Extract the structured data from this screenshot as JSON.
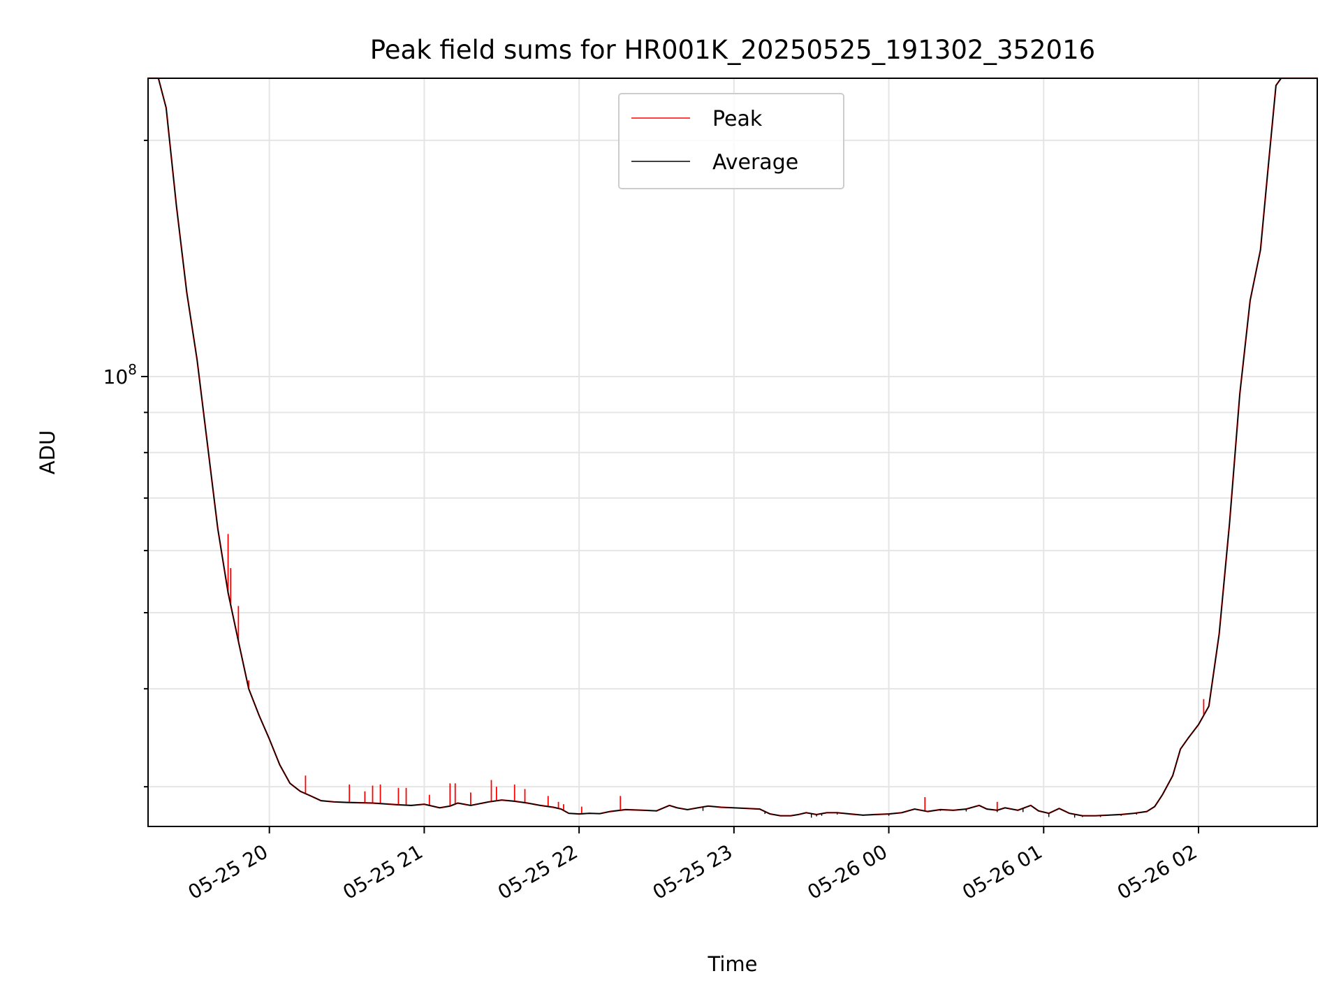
{
  "chart_data": {
    "type": "line",
    "title": "Peak field sums for HR001K_20250525_191302_352016",
    "xlabel": "Time",
    "ylabel": "ADU",
    "yscale": "log",
    "ylim": [
      26700000,
      240000000
    ],
    "xlim": [
      "2025-05-25 19:13",
      "2025-05-26 02:46"
    ],
    "grid": true,
    "legend_position": "top-center",
    "x_tick_labels": [
      "05-25 20",
      "05-25 21",
      "05-25 22",
      "05-25 23",
      "05-26 00",
      "05-26 01",
      "05-26 02"
    ],
    "x_ticks": [
      "2025-05-25 20:00",
      "2025-05-25 21:00",
      "2025-05-25 22:00",
      "2025-05-25 23:00",
      "2025-05-26 00:00",
      "2025-05-26 01:00",
      "2025-05-26 02:00"
    ],
    "y_tick_label": {
      "base": "10",
      "exponent": "8",
      "value": 100000000
    },
    "y_minor_ticks": [
      30000000,
      40000000,
      50000000,
      60000000,
      70000000,
      80000000,
      90000000,
      200000000
    ],
    "series": [
      {
        "name": "Average",
        "color": "#000000",
        "points": [
          [
            "2025-05-25 19:13",
            240000000
          ],
          [
            "2025-05-25 19:17",
            240000000
          ],
          [
            "2025-05-25 19:20",
            220000000
          ],
          [
            "2025-05-25 19:24",
            165000000
          ],
          [
            "2025-05-25 19:28",
            128000000
          ],
          [
            "2025-05-25 19:32",
            105000000
          ],
          [
            "2025-05-25 19:36",
            82000000
          ],
          [
            "2025-05-25 19:40",
            64000000
          ],
          [
            "2025-05-25 19:44",
            53000000
          ],
          [
            "2025-05-25 19:48",
            46000000
          ],
          [
            "2025-05-25 19:52",
            40000000
          ],
          [
            "2025-05-25 19:56",
            37000000
          ],
          [
            "2025-05-25 20:00",
            34500000
          ],
          [
            "2025-05-25 20:04",
            32000000
          ],
          [
            "2025-05-25 20:08",
            30300000
          ],
          [
            "2025-05-25 20:12",
            29600000
          ],
          [
            "2025-05-25 20:16",
            29200000
          ],
          [
            "2025-05-25 20:20",
            28800000
          ],
          [
            "2025-05-25 20:25",
            28700000
          ],
          [
            "2025-05-25 20:30",
            28650000
          ],
          [
            "2025-05-25 20:40",
            28600000
          ],
          [
            "2025-05-25 20:50",
            28450000
          ],
          [
            "2025-05-25 20:55",
            28400000
          ],
          [
            "2025-05-25 21:00",
            28500000
          ],
          [
            "2025-05-25 21:06",
            28200000
          ],
          [
            "2025-05-25 21:10",
            28350000
          ],
          [
            "2025-05-25 21:13",
            28600000
          ],
          [
            "2025-05-25 21:18",
            28400000
          ],
          [
            "2025-05-25 21:25",
            28700000
          ],
          [
            "2025-05-25 21:30",
            28850000
          ],
          [
            "2025-05-25 21:35",
            28750000
          ],
          [
            "2025-05-25 21:40",
            28600000
          ],
          [
            "2025-05-25 21:45",
            28400000
          ],
          [
            "2025-05-25 21:50",
            28250000
          ],
          [
            "2025-05-25 21:53",
            28100000
          ],
          [
            "2025-05-25 21:56",
            27750000
          ],
          [
            "2025-05-25 22:00",
            27700000
          ],
          [
            "2025-05-25 22:04",
            27750000
          ],
          [
            "2025-05-25 22:08",
            27720000
          ],
          [
            "2025-05-25 22:12",
            27900000
          ],
          [
            "2025-05-25 22:18",
            28050000
          ],
          [
            "2025-05-25 22:25",
            28000000
          ],
          [
            "2025-05-25 22:30",
            27950000
          ],
          [
            "2025-05-25 22:35",
            28400000
          ],
          [
            "2025-05-25 22:38",
            28200000
          ],
          [
            "2025-05-25 22:42",
            28050000
          ],
          [
            "2025-05-25 22:46",
            28200000
          ],
          [
            "2025-05-25 22:50",
            28350000
          ],
          [
            "2025-05-25 22:55",
            28250000
          ],
          [
            "2025-05-25 23:00",
            28200000
          ],
          [
            "2025-05-25 23:05",
            28150000
          ],
          [
            "2025-05-25 23:10",
            28100000
          ],
          [
            "2025-05-25 23:14",
            27700000
          ],
          [
            "2025-05-25 23:18",
            27550000
          ],
          [
            "2025-05-25 23:22",
            27550000
          ],
          [
            "2025-05-25 23:25",
            27650000
          ],
          [
            "2025-05-25 23:28",
            27800000
          ],
          [
            "2025-05-25 23:32",
            27650000
          ],
          [
            "2025-05-25 23:36",
            27800000
          ],
          [
            "2025-05-25 23:40",
            27800000
          ],
          [
            "2025-05-25 23:45",
            27700000
          ],
          [
            "2025-05-25 23:50",
            27600000
          ],
          [
            "2025-05-25 23:55",
            27650000
          ],
          [
            "2025-05-26 00:00",
            27700000
          ],
          [
            "2025-05-26 00:05",
            27800000
          ],
          [
            "2025-05-26 00:10",
            28100000
          ],
          [
            "2025-05-26 00:15",
            27900000
          ],
          [
            "2025-05-26 00:20",
            28050000
          ],
          [
            "2025-05-26 00:25",
            28000000
          ],
          [
            "2025-05-26 00:30",
            28100000
          ],
          [
            "2025-05-26 00:35",
            28400000
          ],
          [
            "2025-05-26 00:38",
            28100000
          ],
          [
            "2025-05-26 00:42",
            28000000
          ],
          [
            "2025-05-26 00:45",
            28200000
          ],
          [
            "2025-05-26 00:50",
            28000000
          ],
          [
            "2025-05-26 00:55",
            28400000
          ],
          [
            "2025-05-26 00:58",
            27950000
          ],
          [
            "2025-05-26 01:02",
            27750000
          ],
          [
            "2025-05-26 01:06",
            28150000
          ],
          [
            "2025-05-26 01:10",
            27750000
          ],
          [
            "2025-05-26 01:15",
            27550000
          ],
          [
            "2025-05-26 01:20",
            27550000
          ],
          [
            "2025-05-26 01:25",
            27600000
          ],
          [
            "2025-05-26 01:30",
            27650000
          ],
          [
            "2025-05-26 01:35",
            27750000
          ],
          [
            "2025-05-26 01:40",
            27900000
          ],
          [
            "2025-05-26 01:43",
            28300000
          ],
          [
            "2025-05-26 01:46",
            29300000
          ],
          [
            "2025-05-26 01:50",
            31000000
          ],
          [
            "2025-05-26 01:53",
            33500000
          ],
          [
            "2025-05-26 01:56",
            34600000
          ],
          [
            "2025-05-26 02:00",
            36000000
          ],
          [
            "2025-05-26 02:04",
            38000000
          ],
          [
            "2025-05-26 02:08",
            47000000
          ],
          [
            "2025-05-26 02:12",
            65000000
          ],
          [
            "2025-05-26 02:16",
            95000000
          ],
          [
            "2025-05-26 02:20",
            125000000
          ],
          [
            "2025-05-26 02:24",
            145000000
          ],
          [
            "2025-05-26 02:27",
            185000000
          ],
          [
            "2025-05-26 02:30",
            235000000
          ],
          [
            "2025-05-26 02:32",
            240000000
          ],
          [
            "2025-05-26 02:46",
            240000000
          ]
        ],
        "dips": [
          [
            "2025-05-25 21:56",
            27750000
          ],
          [
            "2025-05-25 22:30",
            27900000
          ],
          [
            "2025-05-25 22:48",
            27950000
          ],
          [
            "2025-05-25 23:12",
            27700000
          ],
          [
            "2025-05-25 23:30",
            27400000
          ],
          [
            "2025-05-25 23:32",
            27500000
          ],
          [
            "2025-05-25 23:34",
            27550000
          ],
          [
            "2025-05-25 23:40",
            27650000
          ],
          [
            "2025-05-25 23:50",
            27550000
          ],
          [
            "2025-05-25 23:55",
            27600000
          ],
          [
            "2025-05-26 00:00",
            27550000
          ],
          [
            "2025-05-26 00:20",
            27950000
          ],
          [
            "2025-05-26 00:30",
            27900000
          ],
          [
            "2025-05-26 00:42",
            27850000
          ],
          [
            "2025-05-26 00:52",
            27850000
          ],
          [
            "2025-05-26 01:02",
            27450000
          ],
          [
            "2025-05-26 01:12",
            27400000
          ],
          [
            "2025-05-26 01:15",
            27450000
          ],
          [
            "2025-05-26 01:22",
            27450000
          ],
          [
            "2025-05-26 01:30",
            27550000
          ],
          [
            "2025-05-26 01:36",
            27650000
          ]
        ]
      },
      {
        "name": "Peak",
        "color": "#ff0000",
        "spikes": [
          [
            "2025-05-25 19:44",
            63000000
          ],
          [
            "2025-05-25 19:45",
            57000000
          ],
          [
            "2025-05-25 19:48",
            51000000
          ],
          [
            "2025-05-25 19:52",
            41000000
          ],
          [
            "2025-05-25 20:14",
            31000000
          ],
          [
            "2025-05-25 20:31",
            30200000
          ],
          [
            "2025-05-25 20:37",
            29600000
          ],
          [
            "2025-05-25 20:40",
            30100000
          ],
          [
            "2025-05-25 20:43",
            30200000
          ],
          [
            "2025-05-25 20:50",
            29900000
          ],
          [
            "2025-05-25 20:53",
            29900000
          ],
          [
            "2025-05-25 21:02",
            29300000
          ],
          [
            "2025-05-25 21:10",
            30300000
          ],
          [
            "2025-05-25 21:12",
            30300000
          ],
          [
            "2025-05-25 21:18",
            29500000
          ],
          [
            "2025-05-25 21:26",
            30600000
          ],
          [
            "2025-05-25 21:28",
            30000000
          ],
          [
            "2025-05-25 21:35",
            30200000
          ],
          [
            "2025-05-25 21:39",
            29800000
          ],
          [
            "2025-05-25 21:48",
            29200000
          ],
          [
            "2025-05-25 21:52",
            28700000
          ],
          [
            "2025-05-25 21:54",
            28500000
          ],
          [
            "2025-05-25 22:01",
            28300000
          ],
          [
            "2025-05-25 22:16",
            29200000
          ],
          [
            "2025-05-26 00:14",
            29100000
          ],
          [
            "2025-05-26 00:42",
            28700000
          ],
          [
            "2025-05-26 02:02",
            38800000
          ]
        ]
      }
    ]
  }
}
